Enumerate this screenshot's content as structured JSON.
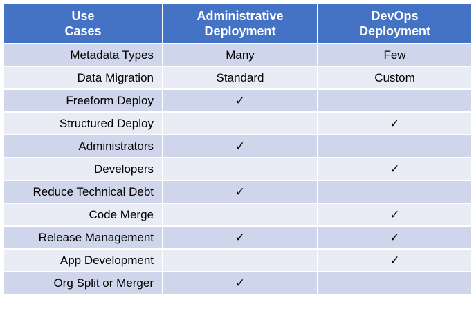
{
  "header": {
    "col1": [
      "Use",
      "Cases"
    ],
    "col2": [
      "Administrative",
      "Deployment"
    ],
    "col3": [
      "DevOps",
      "Deployment"
    ]
  },
  "check_glyph": "✓",
  "colors": {
    "header_bg": "#4472c4",
    "row_dark": "#cfd5ea",
    "row_light": "#e9ebf5"
  },
  "rows": [
    {
      "label": "Metadata Types",
      "admin": "Many",
      "devops": "Few"
    },
    {
      "label": "Data Migration",
      "admin": "Standard",
      "devops": "Custom"
    },
    {
      "label": "Freeform Deploy",
      "admin": "✓",
      "devops": ""
    },
    {
      "label": "Structured Deploy",
      "admin": "",
      "devops": "✓"
    },
    {
      "label": "Administrators",
      "admin": "✓",
      "devops": ""
    },
    {
      "label": "Developers",
      "admin": "",
      "devops": "✓"
    },
    {
      "label": "Reduce Technical Debt",
      "admin": "✓",
      "devops": ""
    },
    {
      "label": "Code Merge",
      "admin": "",
      "devops": "✓"
    },
    {
      "label": "Release Management",
      "admin": "✓",
      "devops": "✓"
    },
    {
      "label": "App Development",
      "admin": "",
      "devops": "✓"
    },
    {
      "label": "Org Split or Merger",
      "admin": "✓",
      "devops": ""
    }
  ]
}
